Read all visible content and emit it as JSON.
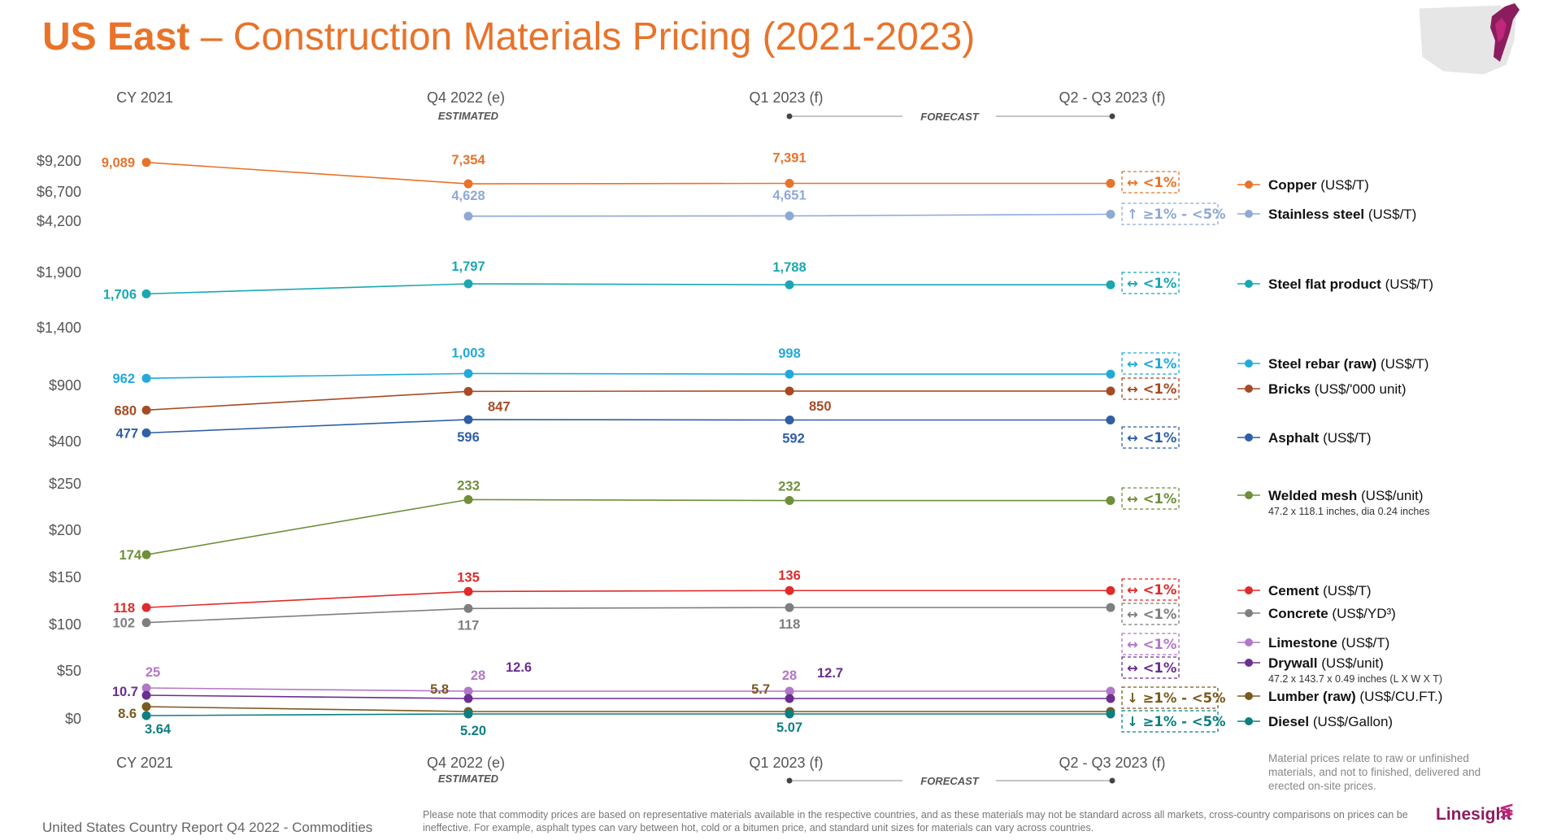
{
  "header": {
    "title_bold": "US East",
    "title_rest": " – Construction Materials Pricing (2021-2023)"
  },
  "footer": {
    "source": "United States Country Report Q4 2022 - Commodities",
    "disclaimer": "Please note that commodity prices are based on representative materials available in the respective countries, and as these materials may not be standard across all markets, cross-country comparisons on prices can be ineffective. For example, asphalt types can vary between hot, cold or a bitumen price, and standard unit sizes for materials can vary across countries.",
    "side_note": "Material prices relate to raw or unfinished materials, and not to finished, delivered and erected on-site prices.",
    "logo": "Linesight",
    "logo_mark": "≶"
  },
  "chart_data": {
    "type": "line",
    "categories": [
      "CY 2021",
      "Q4 2022 (e)",
      "Q1 2023 (f)",
      "Q2 - Q3 2023 (f)"
    ],
    "sublabels": {
      "estimated": "ESTIMATED",
      "forecast": "FORECAST"
    },
    "y_ticks": [
      "$9,200",
      "$6,700",
      "$4,200",
      "$1,900",
      "$1,400",
      "$900",
      "$400",
      "$250",
      "$200",
      "$150",
      "$100",
      "$50",
      "$0"
    ],
    "series": [
      {
        "name": "Copper",
        "unit": "(US$/T)",
        "color": "#e8732a",
        "values": [
          9089,
          7354,
          7391,
          null
        ],
        "labels": [
          "9,089",
          "7,354",
          "7,391",
          ""
        ],
        "forecast": "↔ <1%"
      },
      {
        "name": "Stainless steel",
        "unit": "(US$/T)",
        "color": "#8fa9d6",
        "values": [
          null,
          4628,
          4651,
          null
        ],
        "labels": [
          "",
          "4,628",
          "4,651",
          ""
        ],
        "forecast": "↑ ≥1% - <5%"
      },
      {
        "name": "Steel flat product",
        "unit": "(US$/T)",
        "color": "#1aa7b3",
        "values": [
          1706,
          1797,
          1788,
          null
        ],
        "labels": [
          "1,706",
          "1,797",
          "1,788",
          ""
        ],
        "forecast": "↔ <1%"
      },
      {
        "name": "Steel rebar (raw)",
        "unit": "(US$/T)",
        "color": "#22a9d9",
        "values": [
          962,
          1003,
          998,
          null
        ],
        "labels": [
          "962",
          "1,003",
          "998",
          ""
        ],
        "forecast": "↔ <1%"
      },
      {
        "name": "Bricks",
        "unit": "(US$/'000 unit)",
        "color": "#a64b24",
        "values": [
          680,
          847,
          850,
          null
        ],
        "labels": [
          "680",
          "847",
          "850",
          ""
        ],
        "forecast": "↔ <1%"
      },
      {
        "name": "Asphalt",
        "unit": "(US$/T)",
        "color": "#2f5fa5",
        "values": [
          477,
          596,
          592,
          null
        ],
        "labels": [
          "477",
          "596",
          "592",
          ""
        ],
        "forecast": "↔ <1%"
      },
      {
        "name": "Welded mesh",
        "unit": "(US$/unit)",
        "sub": "47.2 x 118.1 inches, dia 0.24 inches",
        "color": "#6f8f3a",
        "values": [
          174,
          233,
          232,
          null
        ],
        "labels": [
          "174",
          "233",
          "232",
          ""
        ],
        "forecast": "↔ <1%"
      },
      {
        "name": "Cement",
        "unit": "(US$/T)",
        "color": "#e02b2b",
        "values": [
          118,
          135,
          136,
          null
        ],
        "labels": [
          "118",
          "135",
          "136",
          ""
        ],
        "forecast": "↔ <1%"
      },
      {
        "name": "Concrete",
        "unit": "(US$/YD³)",
        "color": "#7f7f7f",
        "values": [
          102,
          117,
          118,
          null
        ],
        "labels": [
          "102",
          "117",
          "118",
          ""
        ],
        "forecast": "↔ <1%"
      },
      {
        "name": "Limestone",
        "unit": "(US$/T)",
        "color": "#b277c9",
        "values": [
          25,
          28,
          28,
          null
        ],
        "labels": [
          "25",
          "28",
          "28",
          ""
        ],
        "forecast": "↔ <1%"
      },
      {
        "name": "Drywall",
        "unit": "(US$/unit)",
        "sub": "47.2 x 143.7 x 0.49 inches (L X W X T)",
        "color": "#6a2f8f",
        "values": [
          10.7,
          12.6,
          12.7,
          null
        ],
        "labels": [
          "10.7",
          "12.6",
          "12.7",
          ""
        ],
        "forecast": "↔ <1%"
      },
      {
        "name": "Lumber (raw)",
        "unit": "(US$/CU.FT.)",
        "color": "#7a5a1e",
        "values": [
          8.6,
          5.8,
          5.7,
          null
        ],
        "labels": [
          "8.6",
          "5.8",
          "5.7",
          ""
        ],
        "forecast": "↓ ≥1% - <5%"
      },
      {
        "name": "Diesel",
        "unit": "(US$/Gallon)",
        "color": "#0e7f80",
        "values": [
          3.64,
          5.2,
          5.07,
          null
        ],
        "labels": [
          "3.64",
          "5.20",
          "5.07",
          ""
        ],
        "forecast": "↓ ≥1% - <5%"
      }
    ]
  }
}
